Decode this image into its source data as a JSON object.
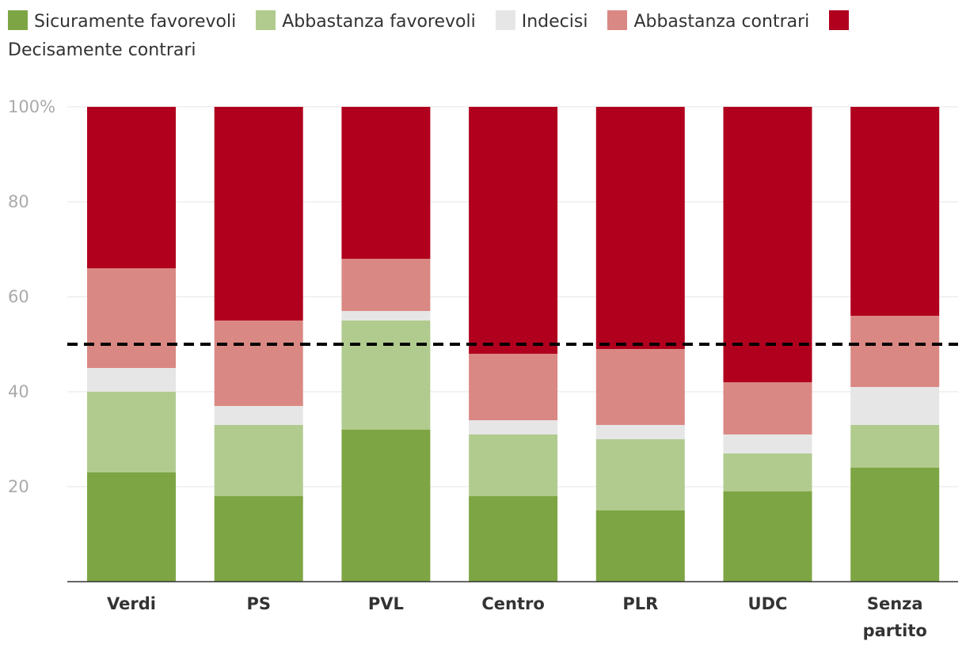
{
  "chart_data": {
    "type": "bar",
    "stacked": true,
    "categories": [
      "Verdi",
      "PS",
      "PVL",
      "Centro",
      "PLR",
      "UDC",
      "Senza partito"
    ],
    "category_lines": [
      [
        "Verdi"
      ],
      [
        "PS"
      ],
      [
        "PVL"
      ],
      [
        "Centro"
      ],
      [
        "PLR"
      ],
      [
        "UDC"
      ],
      [
        "Senza",
        "partito"
      ]
    ],
    "series": [
      {
        "name": "Sicuramente favorevoli",
        "color": "#7ea543",
        "values": [
          23,
          18,
          32,
          18,
          15,
          19,
          24
        ]
      },
      {
        "name": "Abbastanza favorevoli",
        "color": "#b1cb8f",
        "values": [
          17,
          15,
          23,
          13,
          15,
          8,
          9
        ]
      },
      {
        "name": "Indecisi",
        "color": "#e6e6e6",
        "values": [
          5,
          4,
          2,
          3,
          3,
          4,
          8
        ]
      },
      {
        "name": "Abbastanza contrari",
        "color": "#da8883",
        "values": [
          21,
          18,
          11,
          14,
          16,
          11,
          15
        ]
      },
      {
        "name": "Decisamente contrari",
        "color": "#b0001e",
        "values": [
          34,
          45,
          32,
          52,
          51,
          58,
          44
        ]
      }
    ],
    "ylim": [
      0,
      100
    ],
    "yticks": [
      {
        "value": 20,
        "label": "20"
      },
      {
        "value": 40,
        "label": "40"
      },
      {
        "value": 60,
        "label": "60"
      },
      {
        "value": 80,
        "label": "80"
      },
      {
        "value": 100,
        "label": "100%"
      }
    ],
    "reference_line": {
      "value": 50,
      "style": "dashed",
      "color": "#000000"
    },
    "grid": true,
    "legend_position": "top-left",
    "xlabel": "",
    "ylabel": ""
  }
}
